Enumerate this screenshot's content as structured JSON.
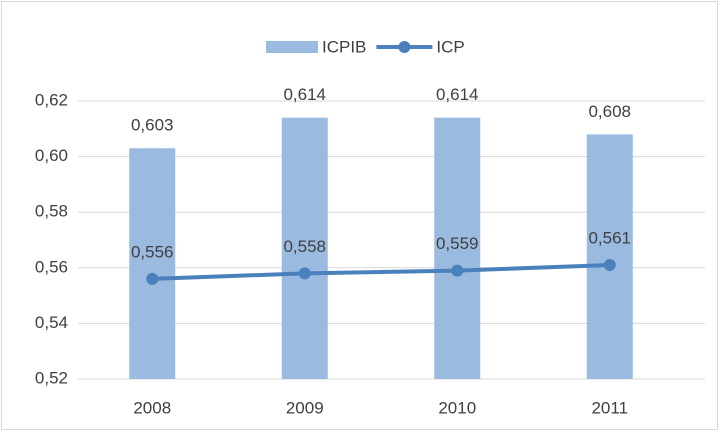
{
  "chart_data": {
    "type": "bar_line",
    "categories": [
      "2008",
      "2009",
      "2010",
      "2011"
    ],
    "series": [
      {
        "name": "ICPIB",
        "type": "bar",
        "color": "#9bbae0",
        "values": [
          0.603,
          0.614,
          0.614,
          0.608
        ],
        "value_labels": [
          "0,603",
          "0,614",
          "0,614",
          "0,608"
        ]
      },
      {
        "name": "ICP",
        "type": "line",
        "color": "#4a81bc",
        "values": [
          0.556,
          0.558,
          0.559,
          0.561
        ],
        "value_labels": [
          "0,556",
          "0,558",
          "0,559",
          "0,561"
        ]
      }
    ],
    "ylim": [
      0.52,
      0.62
    ],
    "yticks": [
      {
        "value": 0.52,
        "label": "0,52"
      },
      {
        "value": 0.54,
        "label": "0,54"
      },
      {
        "value": 0.56,
        "label": "0,56"
      },
      {
        "value": 0.58,
        "label": "0,58"
      },
      {
        "value": 0.6,
        "label": "0,60"
      },
      {
        "value": 0.62,
        "label": "0,62"
      }
    ],
    "grid": true,
    "legend": "top"
  }
}
